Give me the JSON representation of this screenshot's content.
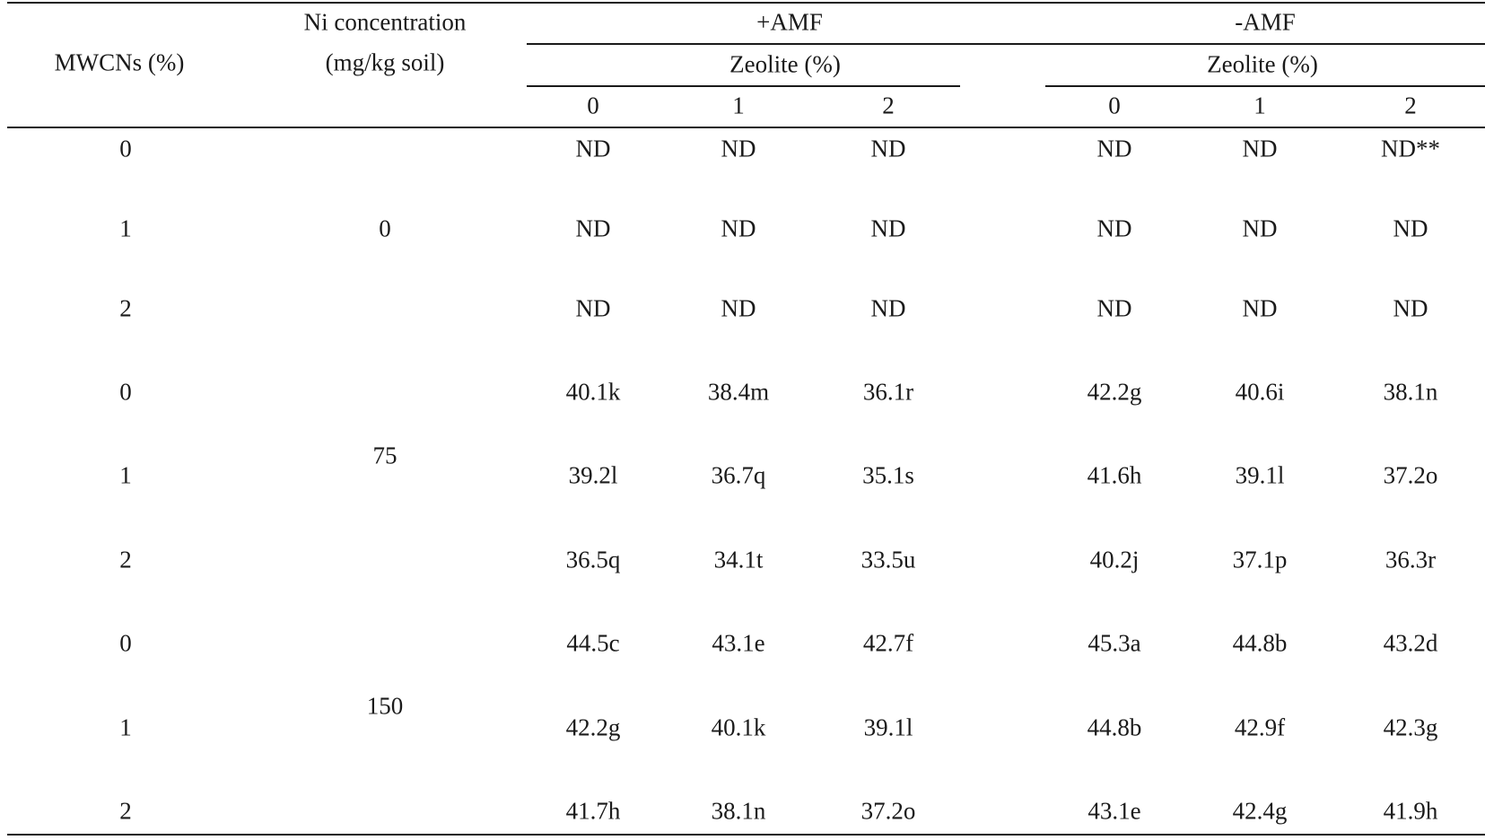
{
  "header": {
    "mwcns_label": "MWCNs (%)",
    "ni_label_line1": "Ni concentration",
    "ni_label_line2": "(mg/kg soil)",
    "amf_plus": "+AMF",
    "amf_minus": "-AMF",
    "zeolite_label": "Zeolite (%)",
    "zeolite_levels": [
      "0",
      "1",
      "2",
      "0",
      "1",
      "2"
    ]
  },
  "ni_groups": [
    "0",
    "75",
    "150"
  ],
  "rows": [
    {
      "mwcns": "0",
      "values": [
        "ND",
        "ND",
        "ND",
        "ND",
        "ND",
        "ND**"
      ]
    },
    {
      "mwcns": "1",
      "values": [
        "ND",
        "ND",
        "ND",
        "ND",
        "ND",
        "ND"
      ]
    },
    {
      "mwcns": "2",
      "values": [
        "ND",
        "ND",
        "ND",
        "ND",
        "ND",
        "ND"
      ]
    },
    {
      "mwcns": "0",
      "values": [
        "40.1k",
        "38.4m",
        "36.1r",
        "42.2g",
        "40.6i",
        "38.1n"
      ]
    },
    {
      "mwcns": "1",
      "values": [
        "39.2l",
        "36.7q",
        "35.1s",
        "41.6h",
        "39.1l",
        "37.2o"
      ]
    },
    {
      "mwcns": "2",
      "values": [
        "36.5q",
        "34.1t",
        "33.5u",
        "40.2j",
        "37.1p",
        "36.3r"
      ]
    },
    {
      "mwcns": "0",
      "values": [
        "44.5c",
        "43.1e",
        "42.7f",
        "45.3a",
        "44.8b",
        "43.2d"
      ]
    },
    {
      "mwcns": "1",
      "values": [
        "42.2g",
        "40.1k",
        "39.1l",
        "44.8b",
        "42.9f",
        "42.3g"
      ]
    },
    {
      "mwcns": "2",
      "values": [
        "41.7h",
        "38.1n",
        "37.2o",
        "43.1e",
        "42.4g",
        "41.9h"
      ]
    }
  ]
}
